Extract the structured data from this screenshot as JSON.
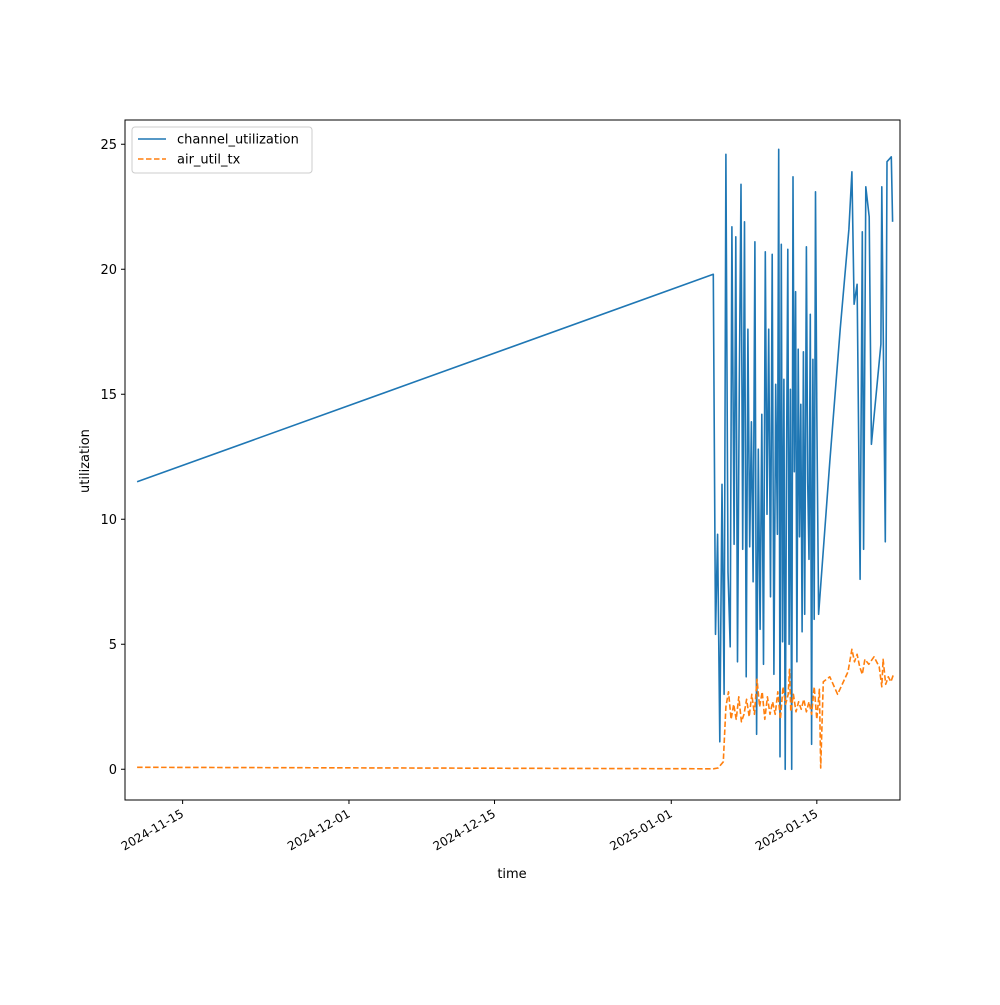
{
  "chart_data": {
    "type": "line",
    "title": "",
    "xlabel": "time",
    "ylabel": "utilization",
    "xlim": [
      "2024-11-09T11:00",
      "2025-01-23T00:00"
    ],
    "ylim": [
      -1.23,
      25.97
    ],
    "x_ticks": [
      "2024-11-15",
      "2024-12-01",
      "2024-12-15",
      "2025-01-01",
      "2025-01-15"
    ],
    "y_ticks": [
      0,
      5,
      10,
      15,
      20,
      25
    ],
    "grid": false,
    "legend": {
      "placement": "upper-left",
      "entries": [
        "channel_utilization",
        "air_util_tx"
      ]
    },
    "series": [
      {
        "name": "channel_utilization",
        "color": "#1f77b4",
        "style": "solid",
        "points": [
          [
            "2024-11-10T15:00",
            11.5
          ],
          [
            "2025-01-05T01:00",
            19.8
          ],
          [
            "2025-01-05T06:00",
            5.4
          ],
          [
            "2025-01-05T11:00",
            9.4
          ],
          [
            "2025-01-05T16:00",
            1.1
          ],
          [
            "2025-01-05T21:00",
            11.4
          ],
          [
            "2025-01-06T02:00",
            3.0
          ],
          [
            "2025-01-06T06:00",
            24.6
          ],
          [
            "2025-01-06T11:00",
            7.9
          ],
          [
            "2025-01-06T16:00",
            4.9
          ],
          [
            "2025-01-06T20:00",
            21.7
          ],
          [
            "2025-01-07T01:00",
            9.0
          ],
          [
            "2025-01-07T05:00",
            21.3
          ],
          [
            "2025-01-07T09:00",
            4.3
          ],
          [
            "2025-01-07T13:00",
            15.3
          ],
          [
            "2025-01-07T17:00",
            23.4
          ],
          [
            "2025-01-07T21:00",
            8.8
          ],
          [
            "2025-01-08T01:00",
            21.9
          ],
          [
            "2025-01-08T05:00",
            3.7
          ],
          [
            "2025-01-08T09:00",
            17.6
          ],
          [
            "2025-01-08T13:00",
            8.9
          ],
          [
            "2025-01-08T17:00",
            13.9
          ],
          [
            "2025-01-08T21:00",
            7.5
          ],
          [
            "2025-01-09T01:00",
            21.1
          ],
          [
            "2025-01-09T05:00",
            1.4
          ],
          [
            "2025-01-09T09:00",
            12.8
          ],
          [
            "2025-01-09T13:00",
            5.6
          ],
          [
            "2025-01-09T17:00",
            14.2
          ],
          [
            "2025-01-09T21:00",
            4.2
          ],
          [
            "2025-01-10T01:00",
            20.7
          ],
          [
            "2025-01-10T05:00",
            10.2
          ],
          [
            "2025-01-10T09:00",
            17.6
          ],
          [
            "2025-01-10T13:00",
            6.9
          ],
          [
            "2025-01-10T17:00",
            20.6
          ],
          [
            "2025-01-10T21:00",
            3.8
          ],
          [
            "2025-01-11T01:00",
            15.4
          ],
          [
            "2025-01-11T05:00",
            9.4
          ],
          [
            "2025-01-11T08:00",
            24.8
          ],
          [
            "2025-01-11T11:00",
            0.5
          ],
          [
            "2025-01-11T14:00",
            21.0
          ],
          [
            "2025-01-11T17:00",
            5.1
          ],
          [
            "2025-01-11T20:00",
            15.6
          ],
          [
            "2025-01-11T23:00",
            0.0
          ],
          [
            "2025-01-12T02:00",
            12.0
          ],
          [
            "2025-01-12T05:00",
            20.8
          ],
          [
            "2025-01-12T08:00",
            5.0
          ],
          [
            "2025-01-12T11:00",
            15.2
          ],
          [
            "2025-01-12T14:00",
            0.0
          ],
          [
            "2025-01-12T17:00",
            23.7
          ],
          [
            "2025-01-12T20:00",
            11.9
          ],
          [
            "2025-01-12T23:00",
            19.1
          ],
          [
            "2025-01-13T02:00",
            4.3
          ],
          [
            "2025-01-13T05:00",
            16.8
          ],
          [
            "2025-01-13T08:00",
            9.3
          ],
          [
            "2025-01-13T11:00",
            14.6
          ],
          [
            "2025-01-13T14:00",
            5.5
          ],
          [
            "2025-01-13T17:00",
            16.7
          ],
          [
            "2025-01-13T20:00",
            6.2
          ],
          [
            "2025-01-14T00:00",
            20.9
          ],
          [
            "2025-01-14T03:00",
            11.5
          ],
          [
            "2025-01-14T06:00",
            8.4
          ],
          [
            "2025-01-14T09:00",
            18.2
          ],
          [
            "2025-01-14T12:00",
            1.0
          ],
          [
            "2025-01-14T15:00",
            16.4
          ],
          [
            "2025-01-14T18:00",
            6.0
          ],
          [
            "2025-01-14T21:00",
            23.1
          ],
          [
            "2025-01-15T00:00",
            14.3
          ],
          [
            "2025-01-15T04:00",
            6.2
          ],
          [
            "2025-01-16T06:00",
            12.3
          ],
          [
            "2025-01-17T06:00",
            17.6
          ],
          [
            "2025-01-18T02:00",
            21.6
          ],
          [
            "2025-01-18T09:00",
            23.9
          ],
          [
            "2025-01-18T14:00",
            18.6
          ],
          [
            "2025-01-18T21:00",
            19.4
          ],
          [
            "2025-01-19T04:00",
            7.6
          ],
          [
            "2025-01-19T09:00",
            21.5
          ],
          [
            "2025-01-19T12:00",
            8.8
          ],
          [
            "2025-01-19T17:00",
            23.3
          ],
          [
            "2025-01-20T01:00",
            22.1
          ],
          [
            "2025-01-20T06:00",
            13.0
          ],
          [
            "2025-01-21T04:00",
            17.0
          ],
          [
            "2025-01-21T06:00",
            23.3
          ],
          [
            "2025-01-21T14:00",
            9.1
          ],
          [
            "2025-01-21T18:00",
            24.3
          ],
          [
            "2025-01-22T04:00",
            24.5
          ],
          [
            "2025-01-22T07:00",
            21.9
          ]
        ]
      },
      {
        "name": "air_util_tx",
        "color": "#ff7f0e",
        "style": "dashed",
        "points": [
          [
            "2024-11-10T15:00",
            0.08
          ],
          [
            "2025-01-05T01:00",
            0.02
          ],
          [
            "2025-01-05T12:00",
            0.05
          ],
          [
            "2025-01-06T00:00",
            0.3
          ],
          [
            "2025-01-06T06:00",
            2.5
          ],
          [
            "2025-01-06T12:00",
            3.1
          ],
          [
            "2025-01-06T18:00",
            2.0
          ],
          [
            "2025-01-07T00:00",
            2.6
          ],
          [
            "2025-01-07T06:00",
            2.0
          ],
          [
            "2025-01-07T12:00",
            2.9
          ],
          [
            "2025-01-07T18:00",
            1.9
          ],
          [
            "2025-01-08T00:00",
            2.2
          ],
          [
            "2025-01-08T06:00",
            2.8
          ],
          [
            "2025-01-08T12:00",
            2.1
          ],
          [
            "2025-01-08T18:00",
            3.0
          ],
          [
            "2025-01-09T00:00",
            2.2
          ],
          [
            "2025-01-09T06:00",
            3.6
          ],
          [
            "2025-01-09T12:00",
            2.5
          ],
          [
            "2025-01-09T18:00",
            3.1
          ],
          [
            "2025-01-10T00:00",
            2.0
          ],
          [
            "2025-01-10T06:00",
            2.9
          ],
          [
            "2025-01-10T12:00",
            2.2
          ],
          [
            "2025-01-10T18:00",
            2.7
          ],
          [
            "2025-01-11T00:00",
            2.2
          ],
          [
            "2025-01-11T06:00",
            3.1
          ],
          [
            "2025-01-11T12:00",
            2.0
          ],
          [
            "2025-01-11T18:00",
            3.3
          ],
          [
            "2025-01-12T00:00",
            2.6
          ],
          [
            "2025-01-12T06:00",
            3.0
          ],
          [
            "2025-01-12T09:00",
            4.0
          ],
          [
            "2025-01-12T12:00",
            2.3
          ],
          [
            "2025-01-12T18:00",
            3.0
          ],
          [
            "2025-01-13T00:00",
            2.3
          ],
          [
            "2025-01-13T06:00",
            2.7
          ],
          [
            "2025-01-13T12:00",
            2.4
          ],
          [
            "2025-01-13T18:00",
            2.8
          ],
          [
            "2025-01-14T00:00",
            2.3
          ],
          [
            "2025-01-14T06:00",
            2.7
          ],
          [
            "2025-01-14T12:00",
            2.2
          ],
          [
            "2025-01-14T18:00",
            3.3
          ],
          [
            "2025-01-15T00:00",
            2.0
          ],
          [
            "2025-01-15T06:00",
            3.2
          ],
          [
            "2025-01-15T09:00",
            0.05
          ],
          [
            "2025-01-15T15:00",
            3.5
          ],
          [
            "2025-01-16T06:00",
            3.7
          ],
          [
            "2025-01-17T00:00",
            3.0
          ],
          [
            "2025-01-18T00:00",
            3.9
          ],
          [
            "2025-01-18T09:00",
            4.8
          ],
          [
            "2025-01-18T15:00",
            4.3
          ],
          [
            "2025-01-18T21:00",
            4.6
          ],
          [
            "2025-01-19T03:00",
            4.1
          ],
          [
            "2025-01-19T09:00",
            3.8
          ],
          [
            "2025-01-19T15:00",
            4.4
          ],
          [
            "2025-01-20T00:00",
            4.2
          ],
          [
            "2025-01-20T12:00",
            4.5
          ],
          [
            "2025-01-21T00:00",
            4.1
          ],
          [
            "2025-01-21T06:00",
            3.3
          ],
          [
            "2025-01-21T09:00",
            4.4
          ],
          [
            "2025-01-21T15:00",
            3.4
          ],
          [
            "2025-01-21T21:00",
            3.7
          ],
          [
            "2025-01-22T03:00",
            3.5
          ],
          [
            "2025-01-22T09:00",
            3.8
          ]
        ]
      }
    ]
  }
}
